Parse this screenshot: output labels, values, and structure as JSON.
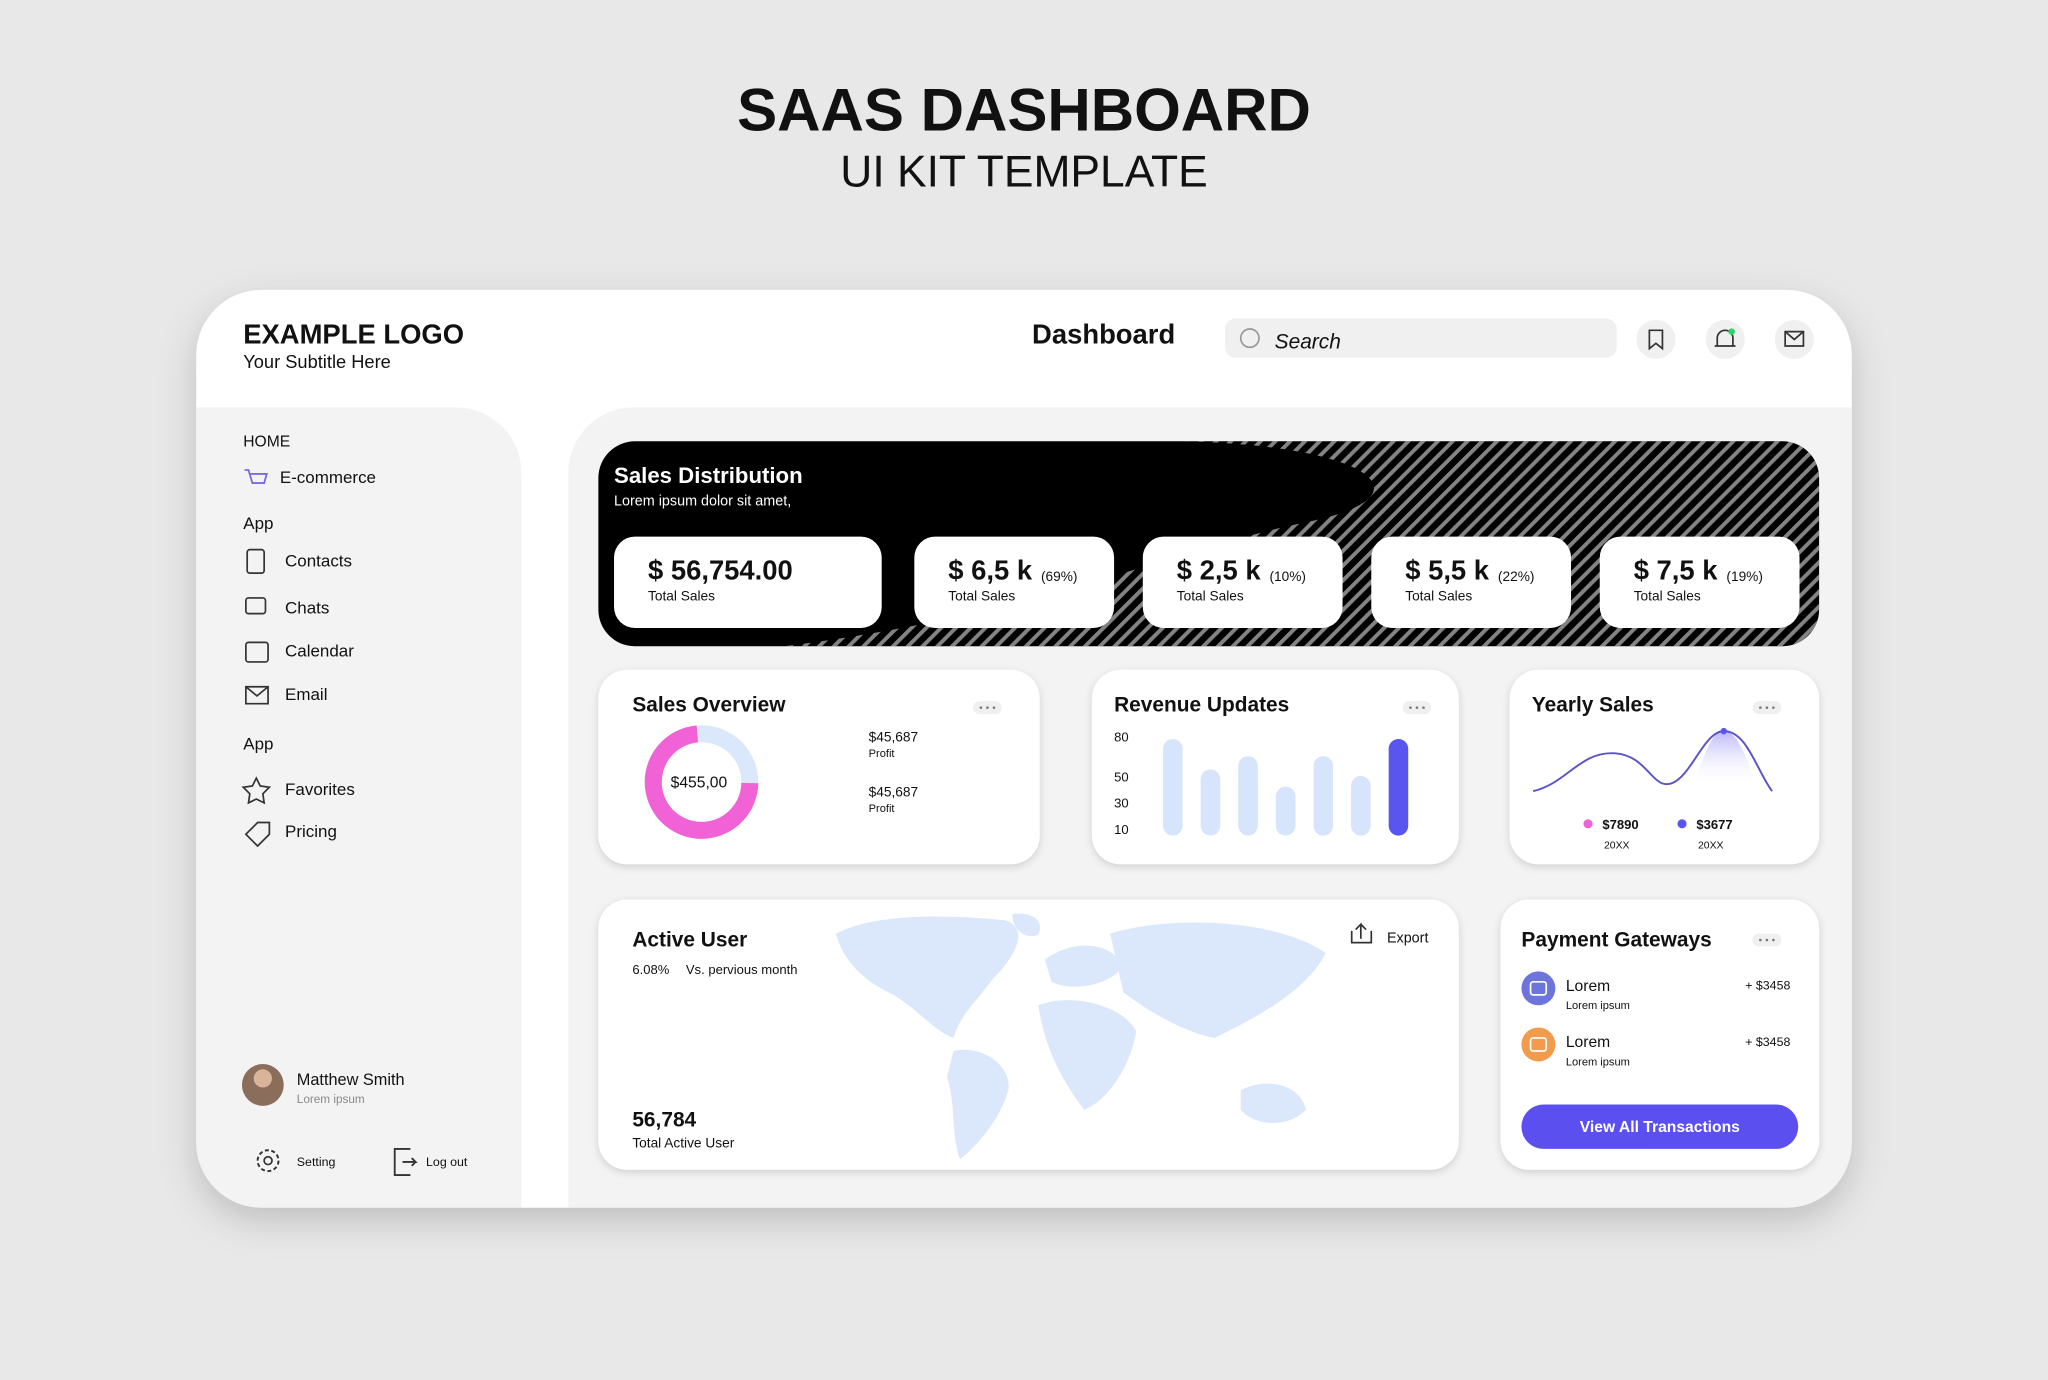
{
  "header": {
    "title": "SAAS DASHBOARD",
    "subtitle": "UI KIT TEMPLATE"
  },
  "topbar": {
    "logo": "EXAMPLE LOGO",
    "logo_subtitle": "Your Subtitle Here",
    "page_title": "Dashboard",
    "search_placeholder": "Search"
  },
  "sidebar": {
    "sections": [
      {
        "title": "HOME",
        "items": [
          "E-commerce"
        ]
      },
      {
        "title": "App",
        "items": [
          "Contacts",
          "Chats",
          "Calendar",
          "Email"
        ]
      },
      {
        "title": "App",
        "items": [
          "Favorites",
          "Pricing"
        ]
      }
    ],
    "user": {
      "name": "Matthew Smith",
      "role": "Lorem ipsum"
    },
    "footer": [
      "Setting",
      "Log out"
    ]
  },
  "sales_distribution": {
    "title": "Sales Distribution",
    "subtitle": "Lorem ipsum dolor sit amet,",
    "cards": [
      {
        "value": "$ 56,754.00",
        "label": "Total Sales"
      },
      {
        "value": "$ 6,5 k",
        "share": "(69%)",
        "label": "Total Sales"
      },
      {
        "value": "$ 2,5 k",
        "share": "(10%)",
        "label": "Total Sales"
      },
      {
        "value": "$ 5,5 k",
        "share": "(22%)",
        "label": "Total Sales"
      },
      {
        "value": "$ 7,5 k",
        "share": "(19%)",
        "label": "Total Sales"
      }
    ]
  },
  "sales_overview": {
    "title": "Sales Overview",
    "center": "$455,00",
    "items": [
      {
        "value": "$45,687",
        "label": "Profit"
      },
      {
        "value": "$45,687",
        "label": "Profit"
      }
    ]
  },
  "revenue_updates": {
    "title": "Revenue Updates",
    "chart_data": {
      "type": "bar",
      "values": [
        78,
        55,
        65,
        42,
        65,
        50,
        78
      ],
      "colors": [
        "#d6e5fb",
        "#d6e5fb",
        "#d6e5fb",
        "#d6e5fb",
        "#d6e5fb",
        "#d6e5fb",
        "#5b55f0"
      ],
      "ylim": [
        5,
        80
      ],
      "yticks": [
        80,
        50,
        30,
        10
      ]
    }
  },
  "yearly_sales": {
    "title": "Yearly Sales",
    "legend": [
      {
        "value": "$7890",
        "period": "20XX",
        "color": "#f062d6"
      },
      {
        "value": "$3677",
        "period": "20XX",
        "color": "#5b55f0"
      }
    ]
  },
  "active_user": {
    "title": "Active User",
    "change": "6.08%",
    "comparison": "Vs. pervious month",
    "export": "Export",
    "total": "56,784",
    "total_label": "Total Active User"
  },
  "payment_gateways": {
    "title": "Payment Gateways",
    "items": [
      {
        "name": "Lorem",
        "sub": "Lorem ipsum",
        "amount": "+ $3458",
        "color": "#6d74dc"
      },
      {
        "name": "Lorem",
        "sub": "Lorem ipsum",
        "amount": "+ $3458",
        "color": "#f39b4c"
      }
    ],
    "button": "View All Transactions"
  }
}
